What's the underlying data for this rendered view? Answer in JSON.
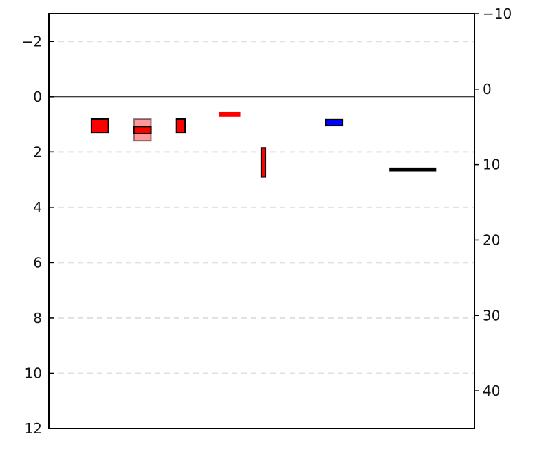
{
  "chart_data": {
    "type": "bar",
    "x_ticks": "none",
    "y_left": {
      "inverted": true,
      "ylim": [
        -3,
        12
      ],
      "ticks": [
        -2,
        0,
        2,
        4,
        6,
        8,
        10,
        12
      ],
      "tick_labels": [
        "−2",
        "0",
        "2",
        "4",
        "6",
        "8",
        "10",
        "12"
      ]
    },
    "y_right": {
      "inverted": true,
      "ylim": [
        -10,
        45
      ],
      "ticks": [
        -10,
        0,
        10,
        20,
        30,
        40
      ],
      "tick_labels": [
        "−10",
        "0",
        "10",
        "20",
        "30",
        "40"
      ]
    },
    "grid": {
      "y": true,
      "style": "dashed",
      "values": [
        -2,
        2,
        4,
        6,
        8,
        10
      ]
    },
    "zero_line": true,
    "boxes": [
      {
        "x0": 1.0,
        "x1": 1.4,
        "y0": 0.8,
        "y1": 1.3,
        "fill": "#ff0000",
        "stroke": "#000000",
        "stroke_width": 2,
        "opacity": 1
      },
      {
        "x0": 2.0,
        "x1": 2.4,
        "y0": 0.8,
        "y1": 1.6,
        "fill": "#ff0000",
        "stroke": "#000000",
        "stroke_width": 2,
        "opacity": 0.4
      },
      {
        "x0": 2.0,
        "x1": 2.4,
        "y0": 1.08,
        "y1": 1.32,
        "fill": "#ff0000",
        "stroke": "#000000",
        "stroke_width": 2,
        "opacity": 1
      },
      {
        "x0": 3.0,
        "x1": 3.2,
        "y0": 0.8,
        "y1": 1.3,
        "fill": "#ff0000",
        "stroke": "#000000",
        "stroke_width": 2,
        "opacity": 1
      },
      {
        "x0": 4.0,
        "x1": 4.5,
        "y0": 0.55,
        "y1": 0.72,
        "fill": "#ff0000",
        "stroke": "none",
        "stroke_width": 0,
        "opacity": 1
      },
      {
        "x0": 4.99,
        "x1": 5.09,
        "y0": 1.85,
        "y1": 2.9,
        "fill": "#ff0000",
        "stroke": "#000000",
        "stroke_width": 2,
        "opacity": 1
      },
      {
        "x0": 6.5,
        "x1": 6.9,
        "y0": 0.82,
        "y1": 1.05,
        "fill": "#0000ff",
        "stroke": "#000000",
        "stroke_width": 2,
        "opacity": 1
      },
      {
        "x0": 8.0,
        "x1": 9.1,
        "y0": 2.56,
        "y1": 2.7,
        "fill": "#000000",
        "stroke": "none",
        "stroke_width": 0,
        "opacity": 1
      }
    ],
    "xlim": [
      0,
      10
    ]
  }
}
